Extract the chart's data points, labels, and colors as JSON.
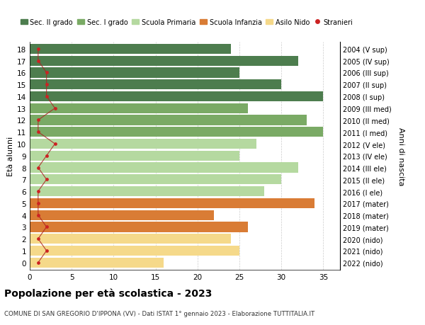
{
  "title": "Popolazione per età scolastica - 2023",
  "subtitle": "COMUNE DI SAN GREGORIO D'IPPONA (VV) - Dati ISTAT 1° gennaio 2023 - Elaborazione TUTTITALIA.IT",
  "ylabel_left": "Età alunni",
  "ylabel_right": "Anni di nascita",
  "ages": [
    18,
    17,
    16,
    15,
    14,
    13,
    12,
    11,
    10,
    9,
    8,
    7,
    6,
    5,
    4,
    3,
    2,
    1,
    0
  ],
  "right_labels": [
    "2004 (V sup)",
    "2005 (IV sup)",
    "2006 (III sup)",
    "2007 (II sup)",
    "2008 (I sup)",
    "2009 (III med)",
    "2010 (II med)",
    "2011 (I med)",
    "2012 (V ele)",
    "2013 (IV ele)",
    "2014 (III ele)",
    "2015 (II ele)",
    "2016 (I ele)",
    "2017 (mater)",
    "2018 (mater)",
    "2019 (mater)",
    "2020 (nido)",
    "2021 (nido)",
    "2022 (nido)"
  ],
  "bar_values": [
    24,
    32,
    25,
    30,
    35,
    26,
    33,
    35,
    27,
    25,
    32,
    30,
    28,
    34,
    22,
    26,
    24,
    25,
    16
  ],
  "bar_colors": [
    "#4d7d4e",
    "#4d7d4e",
    "#4d7d4e",
    "#4d7d4e",
    "#4d7d4e",
    "#7aaa65",
    "#7aaa65",
    "#7aaa65",
    "#b5d9a0",
    "#b5d9a0",
    "#b5d9a0",
    "#b5d9a0",
    "#b5d9a0",
    "#d97c35",
    "#d97c35",
    "#d97c35",
    "#f5d98a",
    "#f5d98a",
    "#f5d98a"
  ],
  "stranieri_x": [
    1,
    1,
    2,
    2,
    2,
    3,
    1,
    1,
    3,
    2,
    1,
    2,
    1,
    1,
    1,
    2,
    1,
    2,
    1
  ],
  "legend_labels": [
    "Sec. II grado",
    "Sec. I grado",
    "Scuola Primaria",
    "Scuola Infanzia",
    "Asilo Nido",
    "Stranieri"
  ],
  "legend_colors": [
    "#4d7d4e",
    "#7aaa65",
    "#b5d9a0",
    "#d97c35",
    "#f5d98a",
    "#cc2222"
  ],
  "xlim": [
    0,
    37
  ],
  "xticks": [
    0,
    5,
    10,
    15,
    20,
    25,
    30,
    35
  ],
  "bg_color": "#ffffff",
  "bar_height": 0.85
}
